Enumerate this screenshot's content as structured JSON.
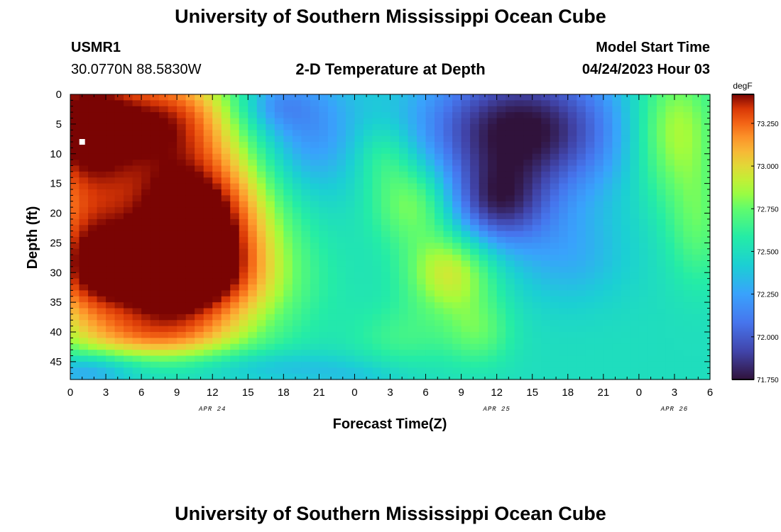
{
  "page": {
    "title": "University of Southern Mississippi Ocean Cube",
    "title_bottom": "University of Southern Mississippi Ocean Cube",
    "station": "USMR1",
    "coords": "30.0770N  88.5830W",
    "subtitle": "2-D Temperature at Depth",
    "model_start_label": "Model Start Time",
    "model_start_value": "04/24/2023 Hour 03"
  },
  "chart_data": {
    "type": "heatmap",
    "title": "2-D Temperature at Depth",
    "xlabel": "Forecast Time(Z)",
    "ylabel": "Depth (ft)",
    "xlim": [
      0,
      54
    ],
    "ylim": [
      0,
      48
    ],
    "y_inverted": true,
    "x_tick_values": [
      0,
      3,
      6,
      9,
      12,
      15,
      18,
      21,
      24,
      27,
      30,
      33,
      36,
      39,
      42,
      45,
      48,
      51,
      54
    ],
    "x_tick_labels": [
      "0",
      "3",
      "6",
      "9",
      "12",
      "15",
      "18",
      "21",
      "0",
      "3",
      "6",
      "9",
      "12",
      "15",
      "18",
      "21",
      "0",
      "3",
      "6"
    ],
    "y_ticks": [
      0,
      5,
      10,
      15,
      20,
      25,
      30,
      35,
      40,
      45
    ],
    "date_labels": [
      {
        "x": 12,
        "label": "APR 24"
      },
      {
        "x": 36,
        "label": "APR 25"
      },
      {
        "x": 51,
        "label": "APR 26"
      }
    ],
    "colorbar": {
      "unit": "degF",
      "min": 71.75,
      "max": 73.42,
      "ticks": [
        73.25,
        73.0,
        72.75,
        72.5,
        72.25,
        72.0,
        71.75
      ],
      "tick_labels": [
        "73.250",
        "73.000",
        "72.750",
        "72.500",
        "72.250",
        "72.000",
        "71.750"
      ]
    },
    "station_marker": {
      "x": 1,
      "y": 8
    },
    "grid_dx": 0.75,
    "grid_dy": 1,
    "field": {
      "base": 72.5,
      "blobs": [
        {
          "x": 1.0,
          "y": 5.0,
          "amp": 1.0,
          "sx": 4.0,
          "sy": 9.0
        },
        {
          "x": 9.0,
          "y": 3.0,
          "amp": 0.55,
          "sx": 3.5,
          "sy": 6.0
        },
        {
          "x": 10.5,
          "y": 20.0,
          "amp": 1.0,
          "sx": 4.5,
          "sy": 9.0
        },
        {
          "x": 8.5,
          "y": 32.0,
          "amp": 0.85,
          "sx": 6.0,
          "sy": 6.5
        },
        {
          "x": 1.0,
          "y": 27.0,
          "amp": 0.55,
          "sx": 3.0,
          "sy": 8.0
        },
        {
          "x": 7.0,
          "y": 41.0,
          "amp": 0.35,
          "sx": 5.0,
          "sy": 3.0
        },
        {
          "x": 20.0,
          "y": 6.0,
          "amp": -0.32,
          "sx": 3.0,
          "sy": 8.0
        },
        {
          "x": 17.0,
          "y": 2.0,
          "amp": -0.2,
          "sx": 2.0,
          "sy": 3.0
        },
        {
          "x": 1.5,
          "y": 46.5,
          "amp": -0.28,
          "sx": 3.0,
          "sy": 2.0
        },
        {
          "x": 17.0,
          "y": 46.0,
          "amp": -0.15,
          "sx": 6.0,
          "sy": 2.0
        },
        {
          "x": 24.5,
          "y": 47.5,
          "amp": -0.08,
          "sx": 3.0,
          "sy": 1.5
        },
        {
          "x": 32.0,
          "y": 30.0,
          "amp": 0.45,
          "sx": 2.6,
          "sy": 5.0
        },
        {
          "x": 29.0,
          "y": 18.0,
          "amp": 0.35,
          "sx": 2.5,
          "sy": 5.0
        },
        {
          "x": 26.5,
          "y": 10.0,
          "amp": 0.18,
          "sx": 1.8,
          "sy": 4.0
        },
        {
          "x": 34.5,
          "y": 40.0,
          "amp": 0.22,
          "sx": 2.0,
          "sy": 4.0
        },
        {
          "x": 28.0,
          "y": 41.0,
          "amp": 0.15,
          "sx": 3.0,
          "sy": 4.0
        },
        {
          "x": 38.0,
          "y": 6.0,
          "amp": -0.78,
          "sx": 6.0,
          "sy": 8.0
        },
        {
          "x": 36.0,
          "y": 19.0,
          "amp": -0.5,
          "sx": 3.0,
          "sy": 5.0
        },
        {
          "x": 42.0,
          "y": 27.0,
          "amp": -0.2,
          "sx": 3.5,
          "sy": 6.0
        },
        {
          "x": 51.0,
          "y": 6.0,
          "amp": 0.42,
          "sx": 2.6,
          "sy": 8.0
        },
        {
          "x": 53.0,
          "y": 22.0,
          "amp": 0.22,
          "sx": 1.8,
          "sy": 7.0
        }
      ]
    }
  }
}
